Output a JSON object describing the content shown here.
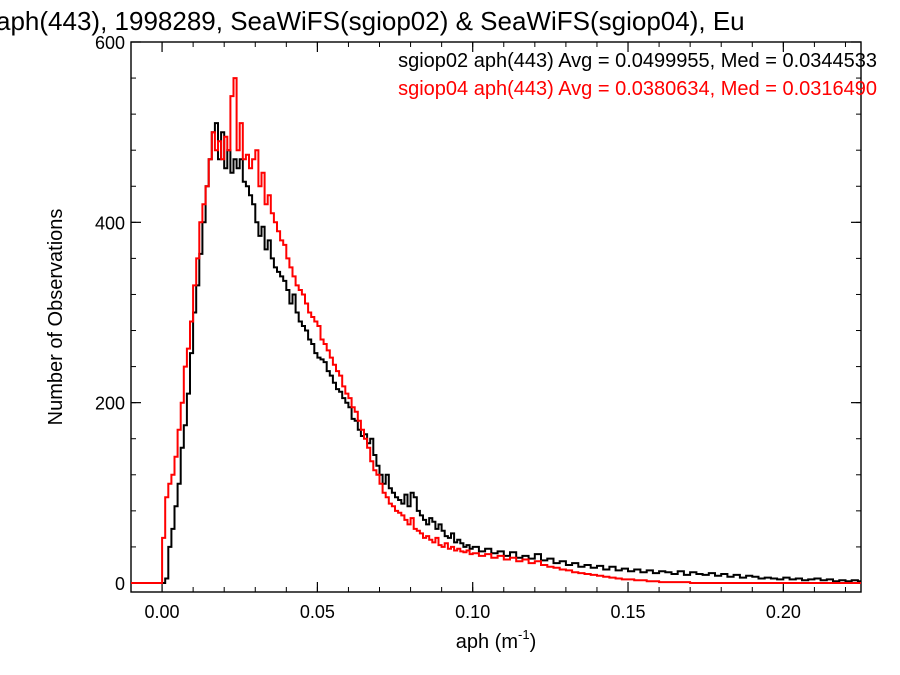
{
  "chart_data": {
    "type": "histogram-step",
    "title": "aph(443), 1998289, SeaWiFS(sgiop02) & SeaWiFS(sgiop04), Eu",
    "xlabel": "aph (m",
    "xlabel_sup": "-1",
    "xlabel_close": ")",
    "ylabel": "Number of Observations",
    "xlim": [
      -0.01,
      0.225
    ],
    "ylim": [
      -10,
      600
    ],
    "xticks": [
      0.0,
      0.05,
      0.1,
      0.15,
      0.2
    ],
    "xtick_labels": [
      "0.00",
      "0.05",
      "0.10",
      "0.15",
      "0.20"
    ],
    "yticks": [
      0,
      200,
      400,
      600
    ],
    "ytick_labels": [
      "0",
      "200",
      "400",
      "600"
    ],
    "grid": false,
    "legend_position": "top-right",
    "series": [
      {
        "name": "sgiop02 aph(443) Avg = 0.0499955, Med = 0.0344533",
        "color": "#000000",
        "points": [
          [
            -0.01,
            0
          ],
          [
            0.0,
            0
          ],
          [
            0.001,
            5
          ],
          [
            0.002,
            40
          ],
          [
            0.003,
            60
          ],
          [
            0.004,
            85
          ],
          [
            0.005,
            110
          ],
          [
            0.006,
            150
          ],
          [
            0.007,
            175
          ],
          [
            0.008,
            210
          ],
          [
            0.009,
            255
          ],
          [
            0.01,
            300
          ],
          [
            0.011,
            330
          ],
          [
            0.012,
            365
          ],
          [
            0.013,
            400
          ],
          [
            0.014,
            440
          ],
          [
            0.015,
            470
          ],
          [
            0.016,
            500
          ],
          [
            0.017,
            510
          ],
          [
            0.018,
            470
          ],
          [
            0.019,
            500
          ],
          [
            0.02,
            460
          ],
          [
            0.021,
            480
          ],
          [
            0.022,
            455
          ],
          [
            0.023,
            470
          ],
          [
            0.024,
            460
          ],
          [
            0.025,
            470
          ],
          [
            0.026,
            445
          ],
          [
            0.027,
            440
          ],
          [
            0.028,
            430
          ],
          [
            0.029,
            420
          ],
          [
            0.03,
            400
          ],
          [
            0.031,
            385
          ],
          [
            0.032,
            395
          ],
          [
            0.033,
            370
          ],
          [
            0.034,
            380
          ],
          [
            0.035,
            360
          ],
          [
            0.036,
            350
          ],
          [
            0.037,
            345
          ],
          [
            0.038,
            340
          ],
          [
            0.039,
            335
          ],
          [
            0.04,
            325
          ],
          [
            0.041,
            310
          ],
          [
            0.042,
            320
          ],
          [
            0.043,
            300
          ],
          [
            0.044,
            290
          ],
          [
            0.045,
            285
          ],
          [
            0.046,
            280
          ],
          [
            0.047,
            270
          ],
          [
            0.048,
            265
          ],
          [
            0.049,
            255
          ],
          [
            0.05,
            250
          ],
          [
            0.051,
            248
          ],
          [
            0.052,
            245
          ],
          [
            0.053,
            235
          ],
          [
            0.054,
            230
          ],
          [
            0.055,
            222
          ],
          [
            0.056,
            215
          ],
          [
            0.057,
            212
          ],
          [
            0.058,
            205
          ],
          [
            0.059,
            200
          ],
          [
            0.06,
            195
          ],
          [
            0.061,
            182
          ],
          [
            0.062,
            180
          ],
          [
            0.063,
            170
          ],
          [
            0.064,
            163
          ],
          [
            0.065,
            165
          ],
          [
            0.066,
            155
          ],
          [
            0.067,
            160
          ],
          [
            0.068,
            142
          ],
          [
            0.069,
            130
          ],
          [
            0.07,
            120
          ],
          [
            0.071,
            110
          ],
          [
            0.072,
            120
          ],
          [
            0.073,
            105
          ],
          [
            0.074,
            100
          ],
          [
            0.075,
            95
          ],
          [
            0.076,
            92
          ],
          [
            0.077,
            88
          ],
          [
            0.078,
            98
          ],
          [
            0.079,
            85
          ],
          [
            0.08,
            100
          ],
          [
            0.081,
            95
          ],
          [
            0.082,
            80
          ],
          [
            0.083,
            75
          ],
          [
            0.084,
            70
          ],
          [
            0.085,
            65
          ],
          [
            0.086,
            72
          ],
          [
            0.087,
            68
          ],
          [
            0.088,
            60
          ],
          [
            0.089,
            65
          ],
          [
            0.09,
            58
          ],
          [
            0.091,
            52
          ],
          [
            0.092,
            50
          ],
          [
            0.093,
            55
          ],
          [
            0.094,
            45
          ],
          [
            0.095,
            48
          ],
          [
            0.096,
            44
          ],
          [
            0.097,
            40
          ],
          [
            0.098,
            42
          ],
          [
            0.099,
            38
          ],
          [
            0.1,
            40
          ],
          [
            0.102,
            35
          ],
          [
            0.104,
            38
          ],
          [
            0.106,
            33
          ],
          [
            0.108,
            35
          ],
          [
            0.11,
            30
          ],
          [
            0.112,
            34
          ],
          [
            0.114,
            28
          ],
          [
            0.116,
            30
          ],
          [
            0.118,
            27
          ],
          [
            0.12,
            32
          ],
          [
            0.122,
            25
          ],
          [
            0.124,
            27
          ],
          [
            0.126,
            22
          ],
          [
            0.128,
            24
          ],
          [
            0.13,
            20
          ],
          [
            0.132,
            22
          ],
          [
            0.134,
            18
          ],
          [
            0.136,
            20
          ],
          [
            0.138,
            17
          ],
          [
            0.14,
            19
          ],
          [
            0.142,
            15
          ],
          [
            0.144,
            18
          ],
          [
            0.146,
            14
          ],
          [
            0.148,
            16
          ],
          [
            0.15,
            13
          ],
          [
            0.152,
            15
          ],
          [
            0.154,
            12
          ],
          [
            0.156,
            14
          ],
          [
            0.158,
            11
          ],
          [
            0.16,
            13
          ],
          [
            0.162,
            12
          ],
          [
            0.164,
            10
          ],
          [
            0.166,
            13
          ],
          [
            0.168,
            9
          ],
          [
            0.17,
            12
          ],
          [
            0.172,
            10
          ],
          [
            0.174,
            9
          ],
          [
            0.176,
            11
          ],
          [
            0.178,
            8
          ],
          [
            0.18,
            10
          ],
          [
            0.182,
            7
          ],
          [
            0.184,
            9
          ],
          [
            0.186,
            6
          ],
          [
            0.188,
            8
          ],
          [
            0.19,
            7
          ],
          [
            0.192,
            5
          ],
          [
            0.194,
            6
          ],
          [
            0.196,
            5
          ],
          [
            0.198,
            4
          ],
          [
            0.2,
            6
          ],
          [
            0.202,
            4
          ],
          [
            0.204,
            5
          ],
          [
            0.206,
            3
          ],
          [
            0.208,
            4
          ],
          [
            0.21,
            5
          ],
          [
            0.212,
            3
          ],
          [
            0.214,
            4
          ],
          [
            0.216,
            2
          ],
          [
            0.218,
            3
          ],
          [
            0.22,
            2
          ],
          [
            0.222,
            3
          ],
          [
            0.224,
            2
          ],
          [
            0.225,
            2
          ]
        ]
      },
      {
        "name": "sgiop04 aph(443) Avg = 0.0380634, Med = 0.0316490",
        "color": "#ff0000",
        "points": [
          [
            -0.01,
            0
          ],
          [
            -0.001,
            0
          ],
          [
            0.0,
            50
          ],
          [
            0.001,
            95
          ],
          [
            0.002,
            110
          ],
          [
            0.003,
            120
          ],
          [
            0.004,
            140
          ],
          [
            0.005,
            170
          ],
          [
            0.006,
            200
          ],
          [
            0.007,
            240
          ],
          [
            0.008,
            260
          ],
          [
            0.009,
            290
          ],
          [
            0.01,
            330
          ],
          [
            0.011,
            360
          ],
          [
            0.012,
            400
          ],
          [
            0.013,
            420
          ],
          [
            0.014,
            440
          ],
          [
            0.015,
            470
          ],
          [
            0.016,
            500
          ],
          [
            0.017,
            480
          ],
          [
            0.018,
            490
          ],
          [
            0.019,
            470
          ],
          [
            0.02,
            495
          ],
          [
            0.021,
            480
          ],
          [
            0.022,
            540
          ],
          [
            0.023,
            560
          ],
          [
            0.024,
            480
          ],
          [
            0.025,
            510
          ],
          [
            0.026,
            470
          ],
          [
            0.027,
            475
          ],
          [
            0.028,
            460
          ],
          [
            0.029,
            470
          ],
          [
            0.03,
            480
          ],
          [
            0.031,
            440
          ],
          [
            0.032,
            455
          ],
          [
            0.033,
            420
          ],
          [
            0.034,
            430
          ],
          [
            0.035,
            410
          ],
          [
            0.036,
            400
          ],
          [
            0.037,
            390
          ],
          [
            0.038,
            380
          ],
          [
            0.039,
            375
          ],
          [
            0.04,
            360
          ],
          [
            0.041,
            350
          ],
          [
            0.042,
            340
          ],
          [
            0.043,
            330
          ],
          [
            0.044,
            325
          ],
          [
            0.045,
            320
          ],
          [
            0.046,
            310
          ],
          [
            0.047,
            300
          ],
          [
            0.048,
            295
          ],
          [
            0.049,
            290
          ],
          [
            0.05,
            285
          ],
          [
            0.051,
            270
          ],
          [
            0.052,
            265
          ],
          [
            0.053,
            258
          ],
          [
            0.054,
            250
          ],
          [
            0.055,
            242
          ],
          [
            0.056,
            235
          ],
          [
            0.057,
            230
          ],
          [
            0.058,
            218
          ],
          [
            0.059,
            210
          ],
          [
            0.06,
            205
          ],
          [
            0.061,
            195
          ],
          [
            0.062,
            190
          ],
          [
            0.063,
            180
          ],
          [
            0.064,
            170
          ],
          [
            0.065,
            160
          ],
          [
            0.066,
            150
          ],
          [
            0.067,
            135
          ],
          [
            0.068,
            125
          ],
          [
            0.069,
            120
          ],
          [
            0.07,
            110
          ],
          [
            0.071,
            100
          ],
          [
            0.072,
            95
          ],
          [
            0.073,
            88
          ],
          [
            0.074,
            85
          ],
          [
            0.075,
            80
          ],
          [
            0.076,
            78
          ],
          [
            0.077,
            75
          ],
          [
            0.078,
            70
          ],
          [
            0.079,
            65
          ],
          [
            0.08,
            72
          ],
          [
            0.081,
            60
          ],
          [
            0.082,
            58
          ],
          [
            0.083,
            55
          ],
          [
            0.084,
            50
          ],
          [
            0.085,
            52
          ],
          [
            0.086,
            48
          ],
          [
            0.087,
            45
          ],
          [
            0.088,
            50
          ],
          [
            0.089,
            42
          ],
          [
            0.09,
            40
          ],
          [
            0.091,
            44
          ],
          [
            0.092,
            38
          ],
          [
            0.093,
            40
          ],
          [
            0.094,
            36
          ],
          [
            0.095,
            38
          ],
          [
            0.096,
            35
          ],
          [
            0.097,
            34
          ],
          [
            0.098,
            36
          ],
          [
            0.099,
            32
          ],
          [
            0.1,
            33
          ],
          [
            0.102,
            30
          ],
          [
            0.104,
            32
          ],
          [
            0.106,
            28
          ],
          [
            0.108,
            30
          ],
          [
            0.11,
            26
          ],
          [
            0.112,
            28
          ],
          [
            0.114,
            24
          ],
          [
            0.116,
            26
          ],
          [
            0.118,
            22
          ],
          [
            0.12,
            24
          ],
          [
            0.122,
            20
          ],
          [
            0.124,
            18
          ],
          [
            0.126,
            17
          ],
          [
            0.128,
            15
          ],
          [
            0.13,
            14
          ],
          [
            0.132,
            12
          ],
          [
            0.134,
            11
          ],
          [
            0.136,
            10
          ],
          [
            0.138,
            9
          ],
          [
            0.14,
            8
          ],
          [
            0.142,
            7
          ],
          [
            0.144,
            6
          ],
          [
            0.146,
            5
          ],
          [
            0.148,
            4
          ],
          [
            0.15,
            4
          ],
          [
            0.152,
            3
          ],
          [
            0.154,
            3
          ],
          [
            0.156,
            2
          ],
          [
            0.158,
            2
          ],
          [
            0.16,
            1
          ],
          [
            0.165,
            1
          ],
          [
            0.17,
            0
          ],
          [
            0.225,
            0
          ]
        ]
      }
    ]
  }
}
